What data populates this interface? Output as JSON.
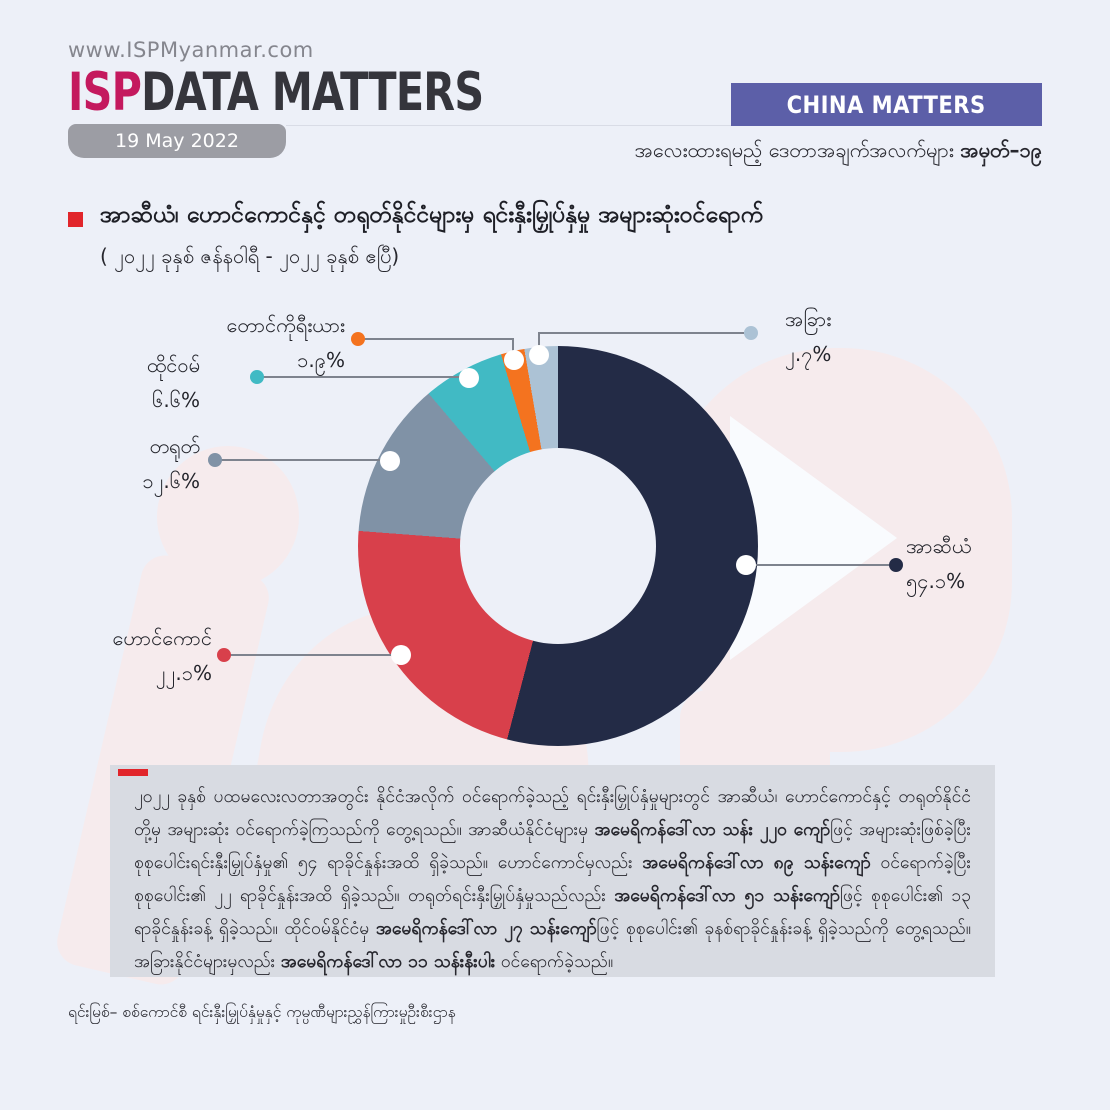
{
  "page": {
    "background": "#EDF0F8"
  },
  "header": {
    "website": "www.ISPMyanmar.com",
    "logo": {
      "isp": "ISP",
      "rest": "DATA MATTERS",
      "isp_color": "#C4195E"
    },
    "date_badge": "19 May 2022",
    "banner": {
      "label": "CHINA MATTERS",
      "color": "#5C5FA8"
    },
    "issue_line": {
      "normal": "အလေးထားရမည့် ဒေတာအချက်အလက်များ ",
      "bold": "အမှတ်–၁၉"
    }
  },
  "title": {
    "main": "အာဆီယံ၊ ဟောင်ကောင်နှင့် တရုတ်နိုင်ငံများမှ ရင်းနှီးမြှုပ်နှံမှု အများဆုံးဝင်ရောက်",
    "period": "( ၂၀၂၂ ခုနှစ် ဇန်နဝါရီ -  ၂၀၂၂ ခုနှစ် ဧပြီ)"
  },
  "chart_data": {
    "type": "pie",
    "subtype": "donut",
    "title": "အာဆီယံ၊ ဟောင်ကောင်နှင့် တရုတ်နိုင်ငံများမှ ရင်းနှီးမြှုပ်နှံမှု အများဆုံးဝင်ရောက် ( ၂၀၂၂ ခုနှစ် ဇန်နဝါရီ - ၂၀၂၂ ခုနှစ် ဧပြီ)",
    "categories": [
      "အာဆီယံ",
      "ဟောင်ကောင်",
      "တရုတ်",
      "ထိုင်ဝမ်",
      "တောင်ကိုရီးယား",
      "အခြား"
    ],
    "categories_en": [
      "ASEAN",
      "Hong Kong",
      "China",
      "Taiwan",
      "South Korea",
      "Others"
    ],
    "values": [
      54.1,
      22.1,
      12.6,
      6.6,
      1.9,
      2.7
    ],
    "value_labels": [
      "၅၄.၁%",
      "၂၂.၁%",
      "၁၂.၆%",
      "၆.၆%",
      "၁.၉%",
      "၂.၇%"
    ],
    "colors": [
      "#232B46",
      "#D8404B",
      "#8092A6",
      "#41BAC4",
      "#F4731F",
      "#ACC2D5"
    ],
    "unit": "%",
    "start_angle_deg": 0,
    "direction": "clockwise",
    "hole_ratio": 0.49,
    "legend_position": "callout-labels"
  },
  "body": {
    "accent_color": "#E1252B",
    "segments": [
      {
        "b": false,
        "t": "၂၀၂၂ ခုနှစ် ပထမလေးလတာအတွင်း နိုင်ငံအလိုက် ဝင်ရောက်ခဲ့သည့် ရင်းနှီးမြှုပ်နှံမှုများတွင် အာဆီယံ၊ ဟောင်ကောင်နှင့် တရုတ်နိုင်ငံတို့မှ အများဆုံး ဝင်ရောက်ခဲ့ကြသည်ကို တွေ့ရသည်။ အာဆီယံနိုင်ငံများမှ "
      },
      {
        "b": true,
        "t": "အမေရိကန်ဒေါ်လာ သန်း ၂၂၀ ကျော်"
      },
      {
        "b": false,
        "t": "ဖြင့် အများဆုံးဖြစ်ခဲ့ပြီး စုစုပေါင်းရင်းနှီးမြှုပ်နှံမှု၏ ၅၄ ရာခိုင်နှုန်းအထိ ရှိခဲ့သည်။ ဟောင်ကောင်မှလည်း "
      },
      {
        "b": true,
        "t": "အမေရိကန်ဒေါ်လာ ၈၉ သန်းကျော်"
      },
      {
        "b": false,
        "t": " ဝင်ရောက်ခဲ့ပြီး စုစုပေါင်း၏ ၂၂ ရာခိုင်နှုန်းအထိ ရှိခဲ့သည်။ တရုတ်ရင်းနှီးမြှုပ်နှံမှုသည်လည်း "
      },
      {
        "b": true,
        "t": "အမေရိကန်ဒေါ်လာ ၅၁ သန်းကျော်"
      },
      {
        "b": false,
        "t": "ဖြင့် စုစုပေါင်း၏ ၁၃ ရာခိုင်နှုန်းခန့် ရှိခဲ့သည်။ ထိုင်ဝမ်နိုင်ငံမှ "
      },
      {
        "b": true,
        "t": "အမေရိကန်ဒေါ်လာ ၂၇ သန်းကျော်"
      },
      {
        "b": false,
        "t": "ဖြင့် စုစုပေါင်း၏ ခုနစ်ရာခိုင်နှုန်းခန့် ရှိခဲ့သည်ကို တွေ့ရသည်။ အခြားနိုင်ငံများမှလည်း "
      },
      {
        "b": true,
        "t": "အမေရိကန်ဒေါ်လာ ၁၁ သန်းနီးပါး"
      },
      {
        "b": false,
        "t": " ဝင်ရောက်ခဲ့သည်။"
      }
    ]
  },
  "footer": {
    "source": "ရင်းမြစ်–  စစ်ကောင်စီ ရင်းနှီးမြှုပ်နှံမှုနှင့် ကုမ္ပဏီများညွှန်ကြားမှုဦးစီးဌာန"
  }
}
